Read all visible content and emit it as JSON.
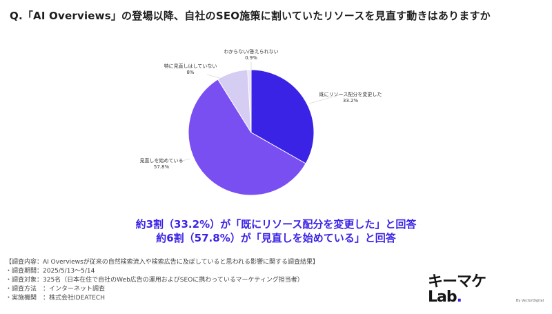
{
  "question": "Q.「AI Overviews」の登場以降、自社のSEO施策に割いていたリソースを見直す動きはありますか",
  "chart_data": {
    "type": "pie",
    "slices": [
      {
        "label": "既にリソース配分を変更した",
        "value": 33.2,
        "value_text": "33.2%",
        "color": "#3b23e6"
      },
      {
        "label": "見直しを始めている",
        "value": 57.8,
        "value_text": "57.8%",
        "color": "#7a4ff2"
      },
      {
        "label": "特に見直しはしていない",
        "value": 8.0,
        "value_text": "8%",
        "color": "#d5cdf2"
      },
      {
        "label": "わからない/答えられない",
        "value": 0.9,
        "value_text": "0.9%",
        "color": "#e8e3f7"
      }
    ],
    "start": "12 o'clock, clockwise",
    "legend": "none (direct labels)"
  },
  "conclusion": {
    "line1": "約3割（33.2%）が「既にリソース配分を変更した」と回答",
    "line2": "約6割（57.8%）が「見直しを始めている」と回答"
  },
  "survey": {
    "line1": "【調査内容：AI Overviewsが従来の自然検索流入や検索広告に及ぼしていると思われる影響に関する調査結果】",
    "line2": "・調査期間：2025/5/13〜5/14",
    "line3": "・調査対象：325名（日本在住で自社のWeb広告の運用およびSEOに携わっているマーケティング担当者）",
    "line4": "・調査方法　：インターネット調査",
    "line5": "・実施機関　：株式会社IDEATECH"
  },
  "brand": {
    "logo_text": "キーマケLab",
    "logo_dot": ".",
    "sub": "By VectorDigital",
    "accent": "#3b23e6"
  }
}
